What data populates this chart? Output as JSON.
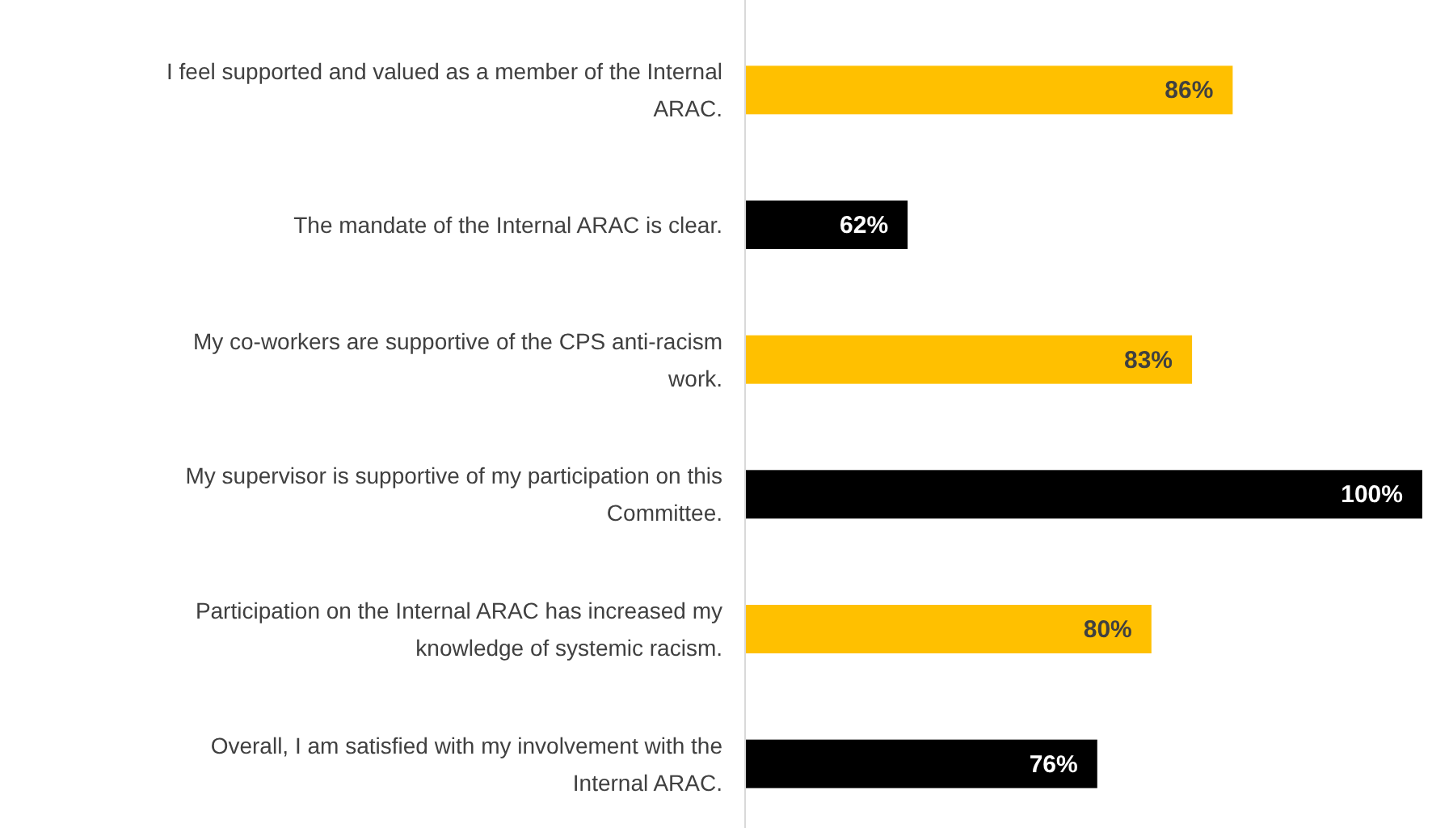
{
  "chart_data": {
    "type": "bar",
    "orientation": "horizontal",
    "categories": [
      "I feel supported and valued as a member of the Internal ARAC.",
      "The mandate of the Internal ARAC is clear.",
      "My co-workers are supportive of the CPS anti-racism work.",
      "My supervisor is supportive of my participation on this Committee.",
      "Participation on the Internal ARAC has increased my knowledge of systemic racism.",
      "Overall, I am satisfied with my involvement with the Internal ARAC."
    ],
    "values": [
      86,
      62,
      83,
      100,
      80,
      76
    ],
    "colors": [
      "#ffc000",
      "#000000",
      "#ffc000",
      "#000000",
      "#ffc000",
      "#000000"
    ],
    "value_labels": [
      "86%",
      "62%",
      "83%",
      "100%",
      "80%",
      "76%"
    ],
    "xlim": [
      50,
      100
    ],
    "tick_labels": "y"
  }
}
